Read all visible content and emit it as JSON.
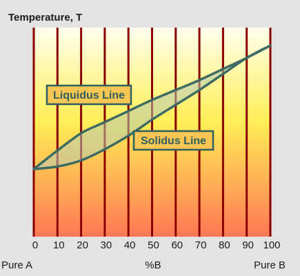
{
  "title": "Temperature, T",
  "x_axis": {
    "ticks": [
      "0",
      "10",
      "20",
      "30",
      "40",
      "50",
      "60",
      "70",
      "80",
      "90",
      "100"
    ],
    "left_label": "Pure A",
    "center_label": "%B",
    "right_label": "Pure B"
  },
  "labels": {
    "liquidus": "Liquidus Line",
    "solidus": "Solidus Line"
  },
  "colors": {
    "background": "#e3e3e3",
    "gradient_top": "#ffffee",
    "gradient_middle": "#ffee55",
    "gradient_bottom": "#ff7755",
    "vertical_lines": "#8b0000",
    "curve": "#3d6b63",
    "curve_fill": "#b4cab2",
    "label_fill": "#f7c653",
    "label_text": "#2f5f5f"
  },
  "chart_data": {
    "type": "line",
    "xlabel": "%B",
    "ylabel": "Temperature, T",
    "xlim": [
      0,
      100
    ],
    "series": [
      {
        "name": "Liquidus Line",
        "x": [
          0,
          10,
          20,
          30,
          40,
          50,
          60,
          70,
          80,
          90,
          100
        ],
        "y": [
          0,
          0.15,
          0.29,
          0.38,
          0.47,
          0.56,
          0.64,
          0.72,
          0.81,
          0.9,
          1
        ]
      },
      {
        "name": "Solidus Line",
        "x": [
          0,
          10,
          20,
          30,
          40,
          50,
          60,
          70,
          80,
          90,
          100
        ],
        "y": [
          0,
          0.02,
          0.07,
          0.16,
          0.27,
          0.4,
          0.52,
          0.64,
          0.77,
          0.9,
          1
        ]
      }
    ]
  }
}
